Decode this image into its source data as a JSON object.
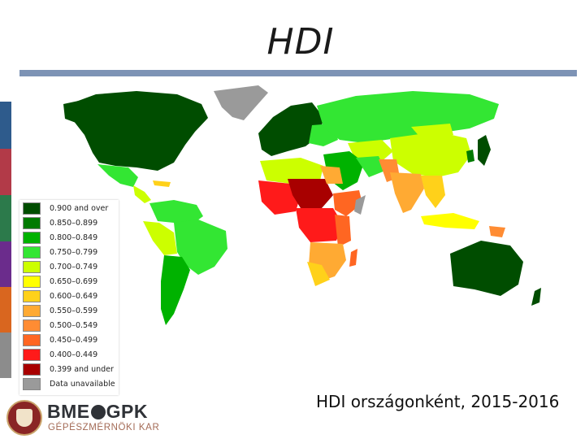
{
  "title": "HDI",
  "caption": "HDI országonként, 2015-2016",
  "logo": {
    "main_left": "BME",
    "main_right": "GPK",
    "sub": "GÉPÉSZMÉRNÖKI KAR"
  },
  "side_strip_colors": [
    "#2e5b8c",
    "#b23a48",
    "#2c7a4b",
    "#6b2c8c",
    "#d9661f",
    "#8c8c8c"
  ],
  "legend": [
    {
      "label": "0.900 and over",
      "color": "#004d00"
    },
    {
      "label": "0.850–0.899",
      "color": "#007a00"
    },
    {
      "label": "0.800–0.849",
      "color": "#00b200"
    },
    {
      "label": "0.750–0.799",
      "color": "#33e633"
    },
    {
      "label": "0.700–0.749",
      "color": "#ccff00"
    },
    {
      "label": "0.650–0.699",
      "color": "#ffff00"
    },
    {
      "label": "0.600–0.649",
      "color": "#ffd11a"
    },
    {
      "label": "0.550–0.599",
      "color": "#ffaa33"
    },
    {
      "label": "0.500–0.549",
      "color": "#ff8c33"
    },
    {
      "label": "0.450–0.499",
      "color": "#ff6622"
    },
    {
      "label": "0.400–0.449",
      "color": "#ff1a1a"
    },
    {
      "label": "0.399 and under",
      "color": "#a80000"
    },
    {
      "label": "Data unavailable",
      "color": "#9a9a9a"
    }
  ]
}
